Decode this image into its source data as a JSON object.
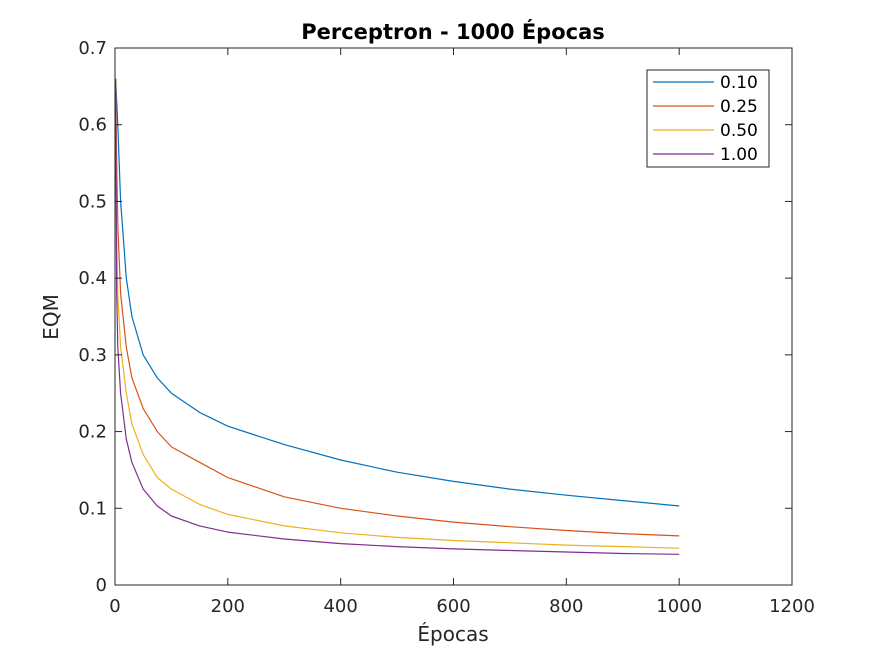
{
  "chart_data": {
    "type": "line",
    "title": "Perceptron - 1000 Épocas",
    "xlabel": "Épocas",
    "ylabel": "EQM",
    "xlim": [
      0,
      1200
    ],
    "ylim": [
      0,
      0.7
    ],
    "xticks": [
      "0",
      "200",
      "400",
      "600",
      "800",
      "1000",
      "1200"
    ],
    "yticks": [
      "0",
      "0.1",
      "0.2",
      "0.3",
      "0.4",
      "0.5",
      "0.6",
      "0.7"
    ],
    "grid": false,
    "legend_position": "top-right",
    "series": [
      {
        "name": "0.10",
        "color": "#0072BD",
        "x": [
          1,
          5,
          10,
          20,
          30,
          50,
          75,
          100,
          150,
          200,
          300,
          400,
          500,
          600,
          700,
          800,
          900,
          1000
        ],
        "y": [
          0.66,
          0.6,
          0.5,
          0.4,
          0.35,
          0.3,
          0.27,
          0.25,
          0.225,
          0.207,
          0.183,
          0.163,
          0.147,
          0.135,
          0.125,
          0.117,
          0.11,
          0.103
        ]
      },
      {
        "name": "0.25",
        "color": "#D95319",
        "x": [
          1,
          3,
          5,
          10,
          20,
          30,
          50,
          75,
          100,
          150,
          200,
          300,
          400,
          500,
          600,
          700,
          800,
          900,
          1000
        ],
        "y": [
          0.66,
          0.55,
          0.47,
          0.38,
          0.31,
          0.27,
          0.23,
          0.2,
          0.18,
          0.16,
          0.14,
          0.115,
          0.1,
          0.09,
          0.082,
          0.076,
          0.071,
          0.067,
          0.064
        ]
      },
      {
        "name": "0.50",
        "color": "#EDB120",
        "x": [
          1,
          3,
          5,
          10,
          20,
          30,
          50,
          75,
          100,
          150,
          200,
          300,
          400,
          500,
          600,
          700,
          800,
          900,
          1000
        ],
        "y": [
          0.66,
          0.45,
          0.38,
          0.31,
          0.25,
          0.21,
          0.17,
          0.14,
          0.125,
          0.105,
          0.092,
          0.077,
          0.068,
          0.062,
          0.058,
          0.055,
          0.052,
          0.05,
          0.048
        ]
      },
      {
        "name": "1.00",
        "color": "#7E2F8E",
        "x": [
          1,
          3,
          5,
          10,
          20,
          30,
          50,
          75,
          100,
          150,
          200,
          300,
          400,
          500,
          600,
          700,
          800,
          900,
          1000
        ],
        "y": [
          0.66,
          0.38,
          0.31,
          0.25,
          0.19,
          0.16,
          0.125,
          0.103,
          0.09,
          0.077,
          0.069,
          0.06,
          0.054,
          0.05,
          0.047,
          0.045,
          0.043,
          0.041,
          0.04
        ]
      }
    ]
  }
}
